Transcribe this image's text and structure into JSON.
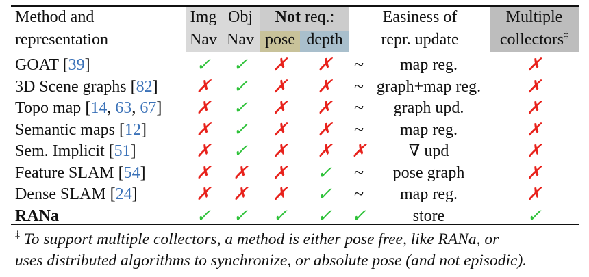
{
  "colors": {
    "img_nav_bg": "#d9d9d9",
    "obj_nav_bg": "#d9d9d9",
    "not_req_bg": "#cccccc",
    "pose_bg": "#c8c29a",
    "depth_bg": "#a9bfcc",
    "collectors_bg": "#bdbdbd",
    "check": "#2fc23a",
    "cross": "#e8221c",
    "ref_link": "#3b72b8"
  },
  "header": {
    "method_line1": "Method and",
    "method_line2": "representation",
    "img_line1": "Img",
    "img_line2": "Nav",
    "obj_line1": "Obj",
    "obj_line2": "Nav",
    "not_bold": "Not",
    "not_rest": " req.:",
    "pose": "pose",
    "depth": "depth",
    "easiness_line1": "Easiness of",
    "easiness_line2": "repr. update",
    "multiple_line1": "Multiple",
    "multiple_line2": "collectors",
    "multiple_mark": "‡"
  },
  "rows": [
    {
      "name": "GOAT ",
      "refs": [
        "39"
      ],
      "img": "✓",
      "obj": "✓",
      "pose": "✗",
      "depth": "✗",
      "update_mark": "~",
      "update": "map reg.",
      "multi": "✗"
    },
    {
      "name": "3D Scene graphs ",
      "refs": [
        "82"
      ],
      "img": "✗",
      "obj": "✓",
      "pose": "✗",
      "depth": "✗",
      "update_mark": "~",
      "update": "graph+map reg.",
      "multi": "✗"
    },
    {
      "name": "Topo map ",
      "refs": [
        "14",
        "63",
        "67"
      ],
      "img": "✗",
      "obj": "✓",
      "pose": "✗",
      "depth": "✗",
      "update_mark": "~",
      "update": "graph upd.",
      "multi": "✗"
    },
    {
      "name": "Semantic maps ",
      "refs": [
        "12"
      ],
      "img": "✗",
      "obj": "✓",
      "pose": "✗",
      "depth": "✗",
      "update_mark": "~",
      "update": "map reg.",
      "multi": "✗"
    },
    {
      "name": "Sem. Implicit ",
      "refs": [
        "51"
      ],
      "img": "✗",
      "obj": "✓",
      "pose": "✗",
      "depth": "✗",
      "update_mark": "✗",
      "update": "∇ upd",
      "multi": "✗"
    },
    {
      "name": "Feature SLAM ",
      "refs": [
        "54"
      ],
      "img": "✗",
      "obj": "✗",
      "pose": "✗",
      "depth": "✓",
      "update_mark": "~",
      "update": "pose graph",
      "multi": "✗"
    },
    {
      "name": "Dense SLAM ",
      "refs": [
        "24"
      ],
      "img": "✗",
      "obj": "✗",
      "pose": "✗",
      "depth": "✓",
      "update_mark": "~",
      "update": "map reg.",
      "multi": "✗"
    },
    {
      "name": "RANa",
      "refs": [],
      "bold": true,
      "img": "✓",
      "obj": "✓",
      "pose": "✓",
      "depth": "✓",
      "update_mark": "✓",
      "update": "store",
      "multi": "✓"
    }
  ],
  "footnote": {
    "mark": "‡",
    "line1": "To support multiple collectors, a method is either pose free, like RANa, or",
    "line2": "uses distributed algorithms to synchronize, or absolute pose (and not episodic)."
  }
}
